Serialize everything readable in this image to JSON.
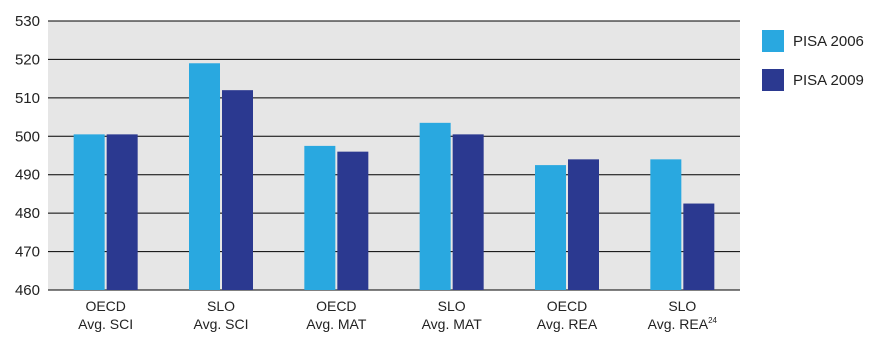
{
  "chart_data": {
    "type": "bar",
    "categories": [
      {
        "line1": "OECD",
        "line2": "Avg. SCI",
        "sup": ""
      },
      {
        "line1": "SLO",
        "line2": "Avg. SCI",
        "sup": ""
      },
      {
        "line1": "OECD",
        "line2": "Avg. MAT",
        "sup": ""
      },
      {
        "line1": "SLO",
        "line2": "Avg. MAT",
        "sup": ""
      },
      {
        "line1": "OECD",
        "line2": "Avg. REA",
        "sup": ""
      },
      {
        "line1": "SLO",
        "line2": "Avg. REA",
        "sup": "24"
      }
    ],
    "series": [
      {
        "name": "PISA 2006",
        "color": "#29a8e0",
        "values": [
          500.5,
          519,
          497.5,
          503.5,
          492.5,
          494
        ]
      },
      {
        "name": "PISA 2009",
        "color": "#2b3990",
        "values": [
          500.5,
          512,
          496,
          500.5,
          494,
          482.5
        ]
      }
    ],
    "yticks": [
      460,
      470,
      480,
      490,
      500,
      510,
      520,
      530
    ],
    "ylim": [
      460,
      530
    ],
    "grid": true,
    "legend_position": "right",
    "title": "",
    "xlabel": "",
    "ylabel": ""
  },
  "colors": {
    "plot_background": "#e6e6e6",
    "gridline": "#000000"
  }
}
